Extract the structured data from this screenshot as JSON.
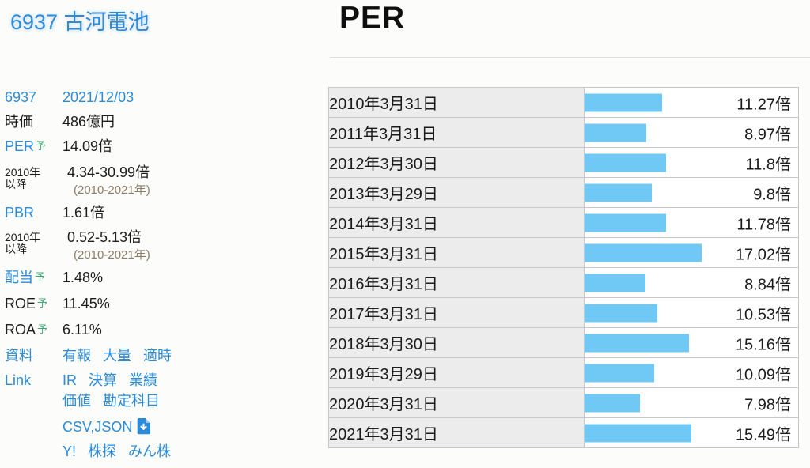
{
  "stock": {
    "title": "6937 古河電池",
    "code": "6937",
    "quote_date": "2021/12/03"
  },
  "main": {
    "title": "PER"
  },
  "sidebar": {
    "market_cap": {
      "label": "時価",
      "value": "486億円"
    },
    "per": {
      "label": "PER",
      "badge": "予",
      "value": "14.09倍"
    },
    "per_range": {
      "label_line1": "2010年",
      "label_line2": "以降",
      "value": "4.34-30.99倍",
      "note": "(2010-2021年)"
    },
    "pbr": {
      "label": "PBR",
      "value": "1.61倍"
    },
    "pbr_range": {
      "label_line1": "2010年",
      "label_line2": "以降",
      "value": "0.52-5.13倍",
      "note": "(2010-2021年)"
    },
    "dividend": {
      "label": "配当",
      "badge": "予",
      "value": "1.48%"
    },
    "roe": {
      "label": "ROE",
      "badge": "予",
      "value": "11.45%"
    },
    "roa": {
      "label": "ROA",
      "badge": "予",
      "value": "6.11%"
    },
    "docs": {
      "label": "資料",
      "links": [
        "有報",
        "大量",
        "適時"
      ]
    },
    "link": {
      "label": "Link",
      "links_line1": [
        "IR",
        "決算",
        "業績"
      ],
      "links_line2": [
        "価値",
        "勘定科目"
      ]
    },
    "export": {
      "label": "CSV,JSON",
      "icon": "download-icon"
    },
    "external": {
      "links": [
        "Y!",
        "株探",
        "みん株"
      ]
    }
  },
  "chart_data": {
    "type": "bar",
    "orientation": "horizontal",
    "title": "PER",
    "unit": "倍",
    "categories": [
      "2010年3月31日",
      "2011年3月31日",
      "2012年3月30日",
      "2013年3月29日",
      "2014年3月31日",
      "2015年3月31日",
      "2016年3月31日",
      "2017年3月31日",
      "2018年3月30日",
      "2019年3月29日",
      "2020年3月31日",
      "2021年3月31日"
    ],
    "values": [
      11.27,
      8.97,
      11.8,
      9.8,
      11.78,
      17.02,
      8.84,
      10.53,
      15.16,
      10.09,
      7.98,
      15.49
    ],
    "value_labels": [
      "11.27倍",
      "8.97倍",
      "11.8倍",
      "9.8倍",
      "11.78倍",
      "17.02倍",
      "8.84倍",
      "10.53倍",
      "15.16倍",
      "10.09倍",
      "7.98倍",
      "15.49倍"
    ],
    "xlim": [
      0,
      30.99
    ],
    "grid": false,
    "legend": false,
    "bar_color": "#70c8f4"
  },
  "colors": {
    "link_blue": "#2b8bd9",
    "badge_green": "#3fa873",
    "note_brown": "#8d7b68",
    "bar_blue": "#70c8f4",
    "date_cell_bg": "#ececec",
    "table_border": "#c7c7c7"
  }
}
